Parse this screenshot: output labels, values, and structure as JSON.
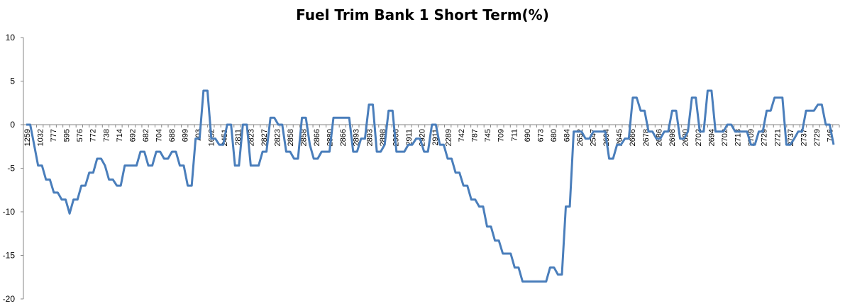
{
  "chart_data": {
    "type": "line",
    "title": "Fuel Trim Bank 1 Short Term(%)",
    "xlabel": "",
    "ylabel": "",
    "ylim": [
      -20,
      10
    ],
    "yticks": [
      10,
      5,
      0,
      -5,
      -10,
      -15,
      -20
    ],
    "grid": false,
    "legend": "none",
    "line_color": "#4a7ebb",
    "x_tick_labels": [
      "1259",
      "1032",
      "777",
      "595",
      "576",
      "772",
      "738",
      "714",
      "692",
      "682",
      "704",
      "688",
      "699",
      "703",
      "1652",
      "2451",
      "2811",
      "2823",
      "2827",
      "2823",
      "2858",
      "2858",
      "2866",
      "2880",
      "2866",
      "2893",
      "2893",
      "2898",
      "2906",
      "2911",
      "2920",
      "2911",
      "2289",
      "742",
      "787",
      "745",
      "709",
      "711",
      "690",
      "673",
      "680",
      "684",
      "2652",
      "2547",
      "2604",
      "2645",
      "2666",
      "2678",
      "2686",
      "2698",
      "2690",
      "2702",
      "2694",
      "2702",
      "2713",
      "2709",
      "2729",
      "2721",
      "2737",
      "2737",
      "2729",
      "746"
    ],
    "series": [
      {
        "values": [
          0,
          0,
          -2.3,
          -4.7,
          -4.7,
          -6.3,
          -6.3,
          -7.8,
          -7.8,
          -8.6,
          -8.6,
          -10.2,
          -8.6,
          -8.6,
          -7,
          -7,
          -5.5,
          -5.5,
          -3.9,
          -3.9,
          -4.7,
          -6.3,
          -6.3,
          -7,
          -7,
          -4.7,
          -4.7,
          -4.7,
          -4.7,
          -3.1,
          -3.1,
          -4.7,
          -4.7,
          -3.1,
          -3.1,
          -3.9,
          -3.9,
          -3.1,
          -3.1,
          -4.7,
          -4.7,
          -7,
          -7,
          -1.6,
          -1.6,
          3.9,
          3.9,
          -1.6,
          -1.6,
          -2.3,
          -2.3,
          0,
          0,
          -4.7,
          -4.7,
          0,
          0,
          -4.7,
          -4.7,
          -4.7,
          -3.1,
          -3.1,
          0.8,
          0.8,
          0,
          0,
          -3.1,
          -3.1,
          -3.9,
          -3.9,
          0.8,
          0.8,
          -2.3,
          -3.9,
          -3.9,
          -3.1,
          -3.1,
          -3.1,
          0.8,
          0.8,
          0.8,
          0.8,
          0.8,
          -3.1,
          -3.1,
          -1.6,
          -1.6,
          2.3,
          2.3,
          -3.1,
          -3.1,
          -2.3,
          1.6,
          1.6,
          -3.1,
          -3.1,
          -3.1,
          -2.3,
          -2.3,
          -1.6,
          -1.6,
          -3.1,
          -3.1,
          0,
          0,
          -2.3,
          -2.3,
          -3.9,
          -3.9,
          -5.5,
          -5.5,
          -7,
          -7,
          -8.6,
          -8.6,
          -9.4,
          -9.4,
          -11.7,
          -11.7,
          -13.3,
          -13.3,
          -14.8,
          -14.8,
          -14.8,
          -16.4,
          -16.4,
          -18,
          -18,
          -18,
          -18,
          -18,
          -18,
          -18,
          -16.4,
          -16.4,
          -17.2,
          -17.2,
          -9.4,
          -9.4,
          -0.8,
          -0.8,
          -0.8,
          -1.6,
          -1.6,
          -0.8,
          -0.8,
          -0.8,
          -0.8,
          -3.9,
          -3.9,
          -2.3,
          -2.3,
          -1.6,
          -1.6,
          3.1,
          3.1,
          1.6,
          1.6,
          -0.8,
          -0.8,
          -1.6,
          -1.6,
          -0.8,
          -0.8,
          1.6,
          1.6,
          -1.6,
          -1.6,
          -0.8,
          3.1,
          3.1,
          -0.8,
          -0.8,
          3.9,
          3.9,
          -0.8,
          -0.8,
          -0.8,
          0,
          0,
          -0.8,
          -0.8,
          -0.8,
          -0.8,
          -2.3,
          -2.3,
          -0.8,
          -0.8,
          1.6,
          1.6,
          3.1,
          3.1,
          3.1,
          -2.3,
          -2.3,
          -1.6,
          -0.8,
          -0.8,
          1.6,
          1.6,
          1.6,
          2.3,
          2.3,
          0,
          0,
          -2.3
        ]
      }
    ]
  }
}
